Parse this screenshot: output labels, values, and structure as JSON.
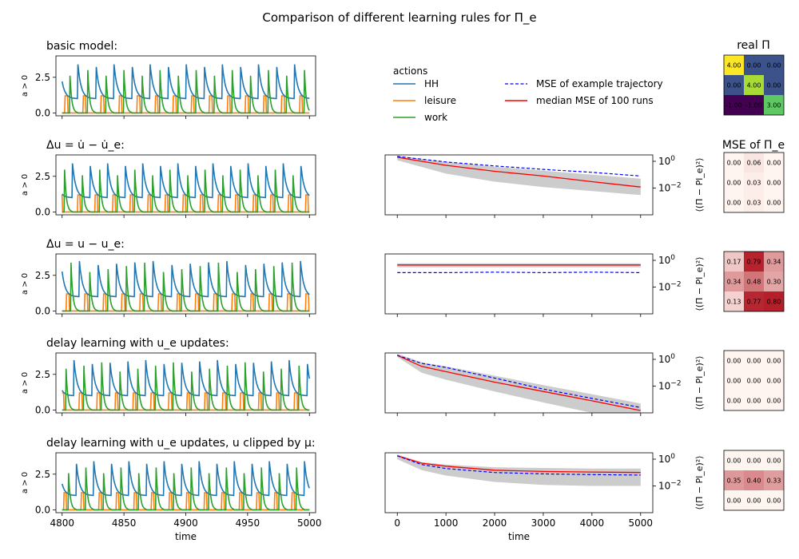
{
  "figure": {
    "title": "Comparison of different learning rules for Π_e"
  },
  "legend": {
    "title": "actions",
    "items": [
      {
        "label": "HH",
        "color": "#1f77b4",
        "style": "solid"
      },
      {
        "label": "leisure",
        "color": "#ff7f0e",
        "style": "solid"
      },
      {
        "label": "work",
        "color": "#2ca02c",
        "style": "solid"
      },
      {
        "label": "MSE of example trajectory",
        "color": "#0000ff",
        "style": "dashed"
      },
      {
        "label": "median MSE of 100 runs",
        "color": "#ff0000",
        "style": "solid"
      }
    ]
  },
  "matrix_titles": {
    "real": "real Π",
    "mse": "MSE of Π_e"
  },
  "chart_data": [
    {
      "type": "line",
      "panel": "activity",
      "rows": [
        "basic model:",
        "Δu = u̇ − u̇_e:",
        "Δu = u − u_e:",
        "delay learning with u_e updates:",
        "delay learning with u_e updates, u clipped by μ:"
      ],
      "ylabel": "a > 0",
      "xlabel": "time",
      "xlim": [
        4795,
        5005
      ],
      "ylim": [
        -0.2,
        4.0
      ],
      "xticks": [
        4800,
        4850,
        4900,
        4950,
        5000
      ],
      "yticks": [
        0.0,
        2.5
      ],
      "ytick_labels": [
        "0.0",
        "2.5"
      ],
      "series": [
        {
          "name": "HH",
          "color": "#1f77b4",
          "values": "periodic decaying spikes peaking near 3.6 and decaying to about 1.0"
        },
        {
          "name": "leisure",
          "color": "#ff7f0e",
          "values": "rectangular pulses of height about 1.2 between HH peaks"
        },
        {
          "name": "work",
          "color": "#2ca02c",
          "values": "sharp spikes of about 3.5 decaying to 0"
        }
      ]
    },
    {
      "type": "line",
      "panel": "mse",
      "ylabel": "⟨(Π − Pl_e)²⟩",
      "xlabel": "time",
      "xlim": [
        -250,
        5250
      ],
      "yscale": "log",
      "ylim": [
        0.0001,
        3
      ],
      "xticks": [
        0,
        1000,
        2000,
        3000,
        4000,
        5000
      ],
      "yticks": [
        0.01,
        1
      ],
      "rows": [
        {
          "x": [
            0,
            1000,
            2000,
            3000,
            4000,
            5000
          ],
          "median": [
            2.0,
            0.5,
            0.18,
            0.08,
            0.03,
            0.012
          ],
          "example": [
            2.3,
            0.9,
            0.45,
            0.25,
            0.15,
            0.08
          ],
          "band_low": [
            1.2,
            0.12,
            0.03,
            0.012,
            0.006,
            0.003
          ],
          "band_high": [
            2.6,
            0.9,
            0.4,
            0.2,
            0.1,
            0.05
          ]
        },
        {
          "x": [
            0,
            1000,
            2000,
            3000,
            4000,
            5000
          ],
          "median": [
            0.45,
            0.45,
            0.45,
            0.45,
            0.45,
            0.45
          ],
          "example": [
            0.12,
            0.12,
            0.13,
            0.12,
            0.13,
            0.12
          ],
          "band_low": [
            0.3,
            0.3,
            0.3,
            0.3,
            0.3,
            0.3
          ],
          "band_high": [
            0.6,
            0.6,
            0.6,
            0.6,
            0.6,
            0.6
          ]
        },
        {
          "x": [
            0,
            500,
            1000,
            2000,
            3000,
            4000,
            5000
          ],
          "median": [
            2.0,
            0.3,
            0.12,
            0.02,
            0.004,
            0.0008,
            0.00015
          ],
          "example": [
            2.0,
            0.5,
            0.25,
            0.04,
            0.006,
            0.0012,
            0.00025
          ],
          "band_low": [
            1.5,
            0.1,
            0.03,
            0.004,
            0.0006,
            0.0001,
            2e-05
          ],
          "band_high": [
            2.6,
            0.6,
            0.3,
            0.06,
            0.012,
            0.0025,
            0.0005
          ]
        },
        {
          "x": [
            0,
            500,
            1000,
            2000,
            3000,
            4000,
            5000
          ],
          "median": [
            1.8,
            0.5,
            0.3,
            0.15,
            0.12,
            0.11,
            0.1
          ],
          "example": [
            1.8,
            0.4,
            0.2,
            0.1,
            0.08,
            0.07,
            0.065
          ],
          "band_low": [
            1.0,
            0.15,
            0.06,
            0.02,
            0.012,
            0.01,
            0.01
          ],
          "band_high": [
            2.2,
            0.6,
            0.4,
            0.25,
            0.22,
            0.2,
            0.2
          ]
        }
      ]
    },
    {
      "type": "heatmap",
      "panel": "real Π",
      "values": [
        [
          "4.00",
          "0.00",
          "0.00"
        ],
        [
          "0.00",
          "4.00",
          "0.00"
        ],
        [
          "-1.00",
          "-1.00",
          "3.00"
        ]
      ],
      "colors": [
        [
          "#fde725",
          "#3b528b",
          "#3b528b"
        ],
        [
          "#3b528b",
          "#a8db34",
          "#3b528b"
        ],
        [
          "#440154",
          "#440154",
          "#5ec962"
        ]
      ]
    },
    {
      "type": "heatmap",
      "panel": "MSE of Π_e",
      "rows": [
        [
          [
            "0.00",
            "0.06",
            "0.00"
          ],
          [
            "0.00",
            "0.03",
            "0.00"
          ],
          [
            "0.00",
            "0.03",
            "0.00"
          ]
        ],
        [
          [
            "0.17",
            "0.79",
            "0.34"
          ],
          [
            "0.34",
            "0.48",
            "0.30"
          ],
          [
            "0.13",
            "0.77",
            "0.80"
          ]
        ],
        [
          [
            "0.00",
            "0.00",
            "0.00"
          ],
          [
            "0.00",
            "0.00",
            "0.00"
          ],
          [
            "0.00",
            "0.00",
            "0.00"
          ]
        ],
        [
          [
            "0.00",
            "0.00",
            "0.00"
          ],
          [
            "0.35",
            "0.40",
            "0.33"
          ],
          [
            "0.00",
            "0.00",
            "0.00"
          ]
        ]
      ]
    }
  ]
}
